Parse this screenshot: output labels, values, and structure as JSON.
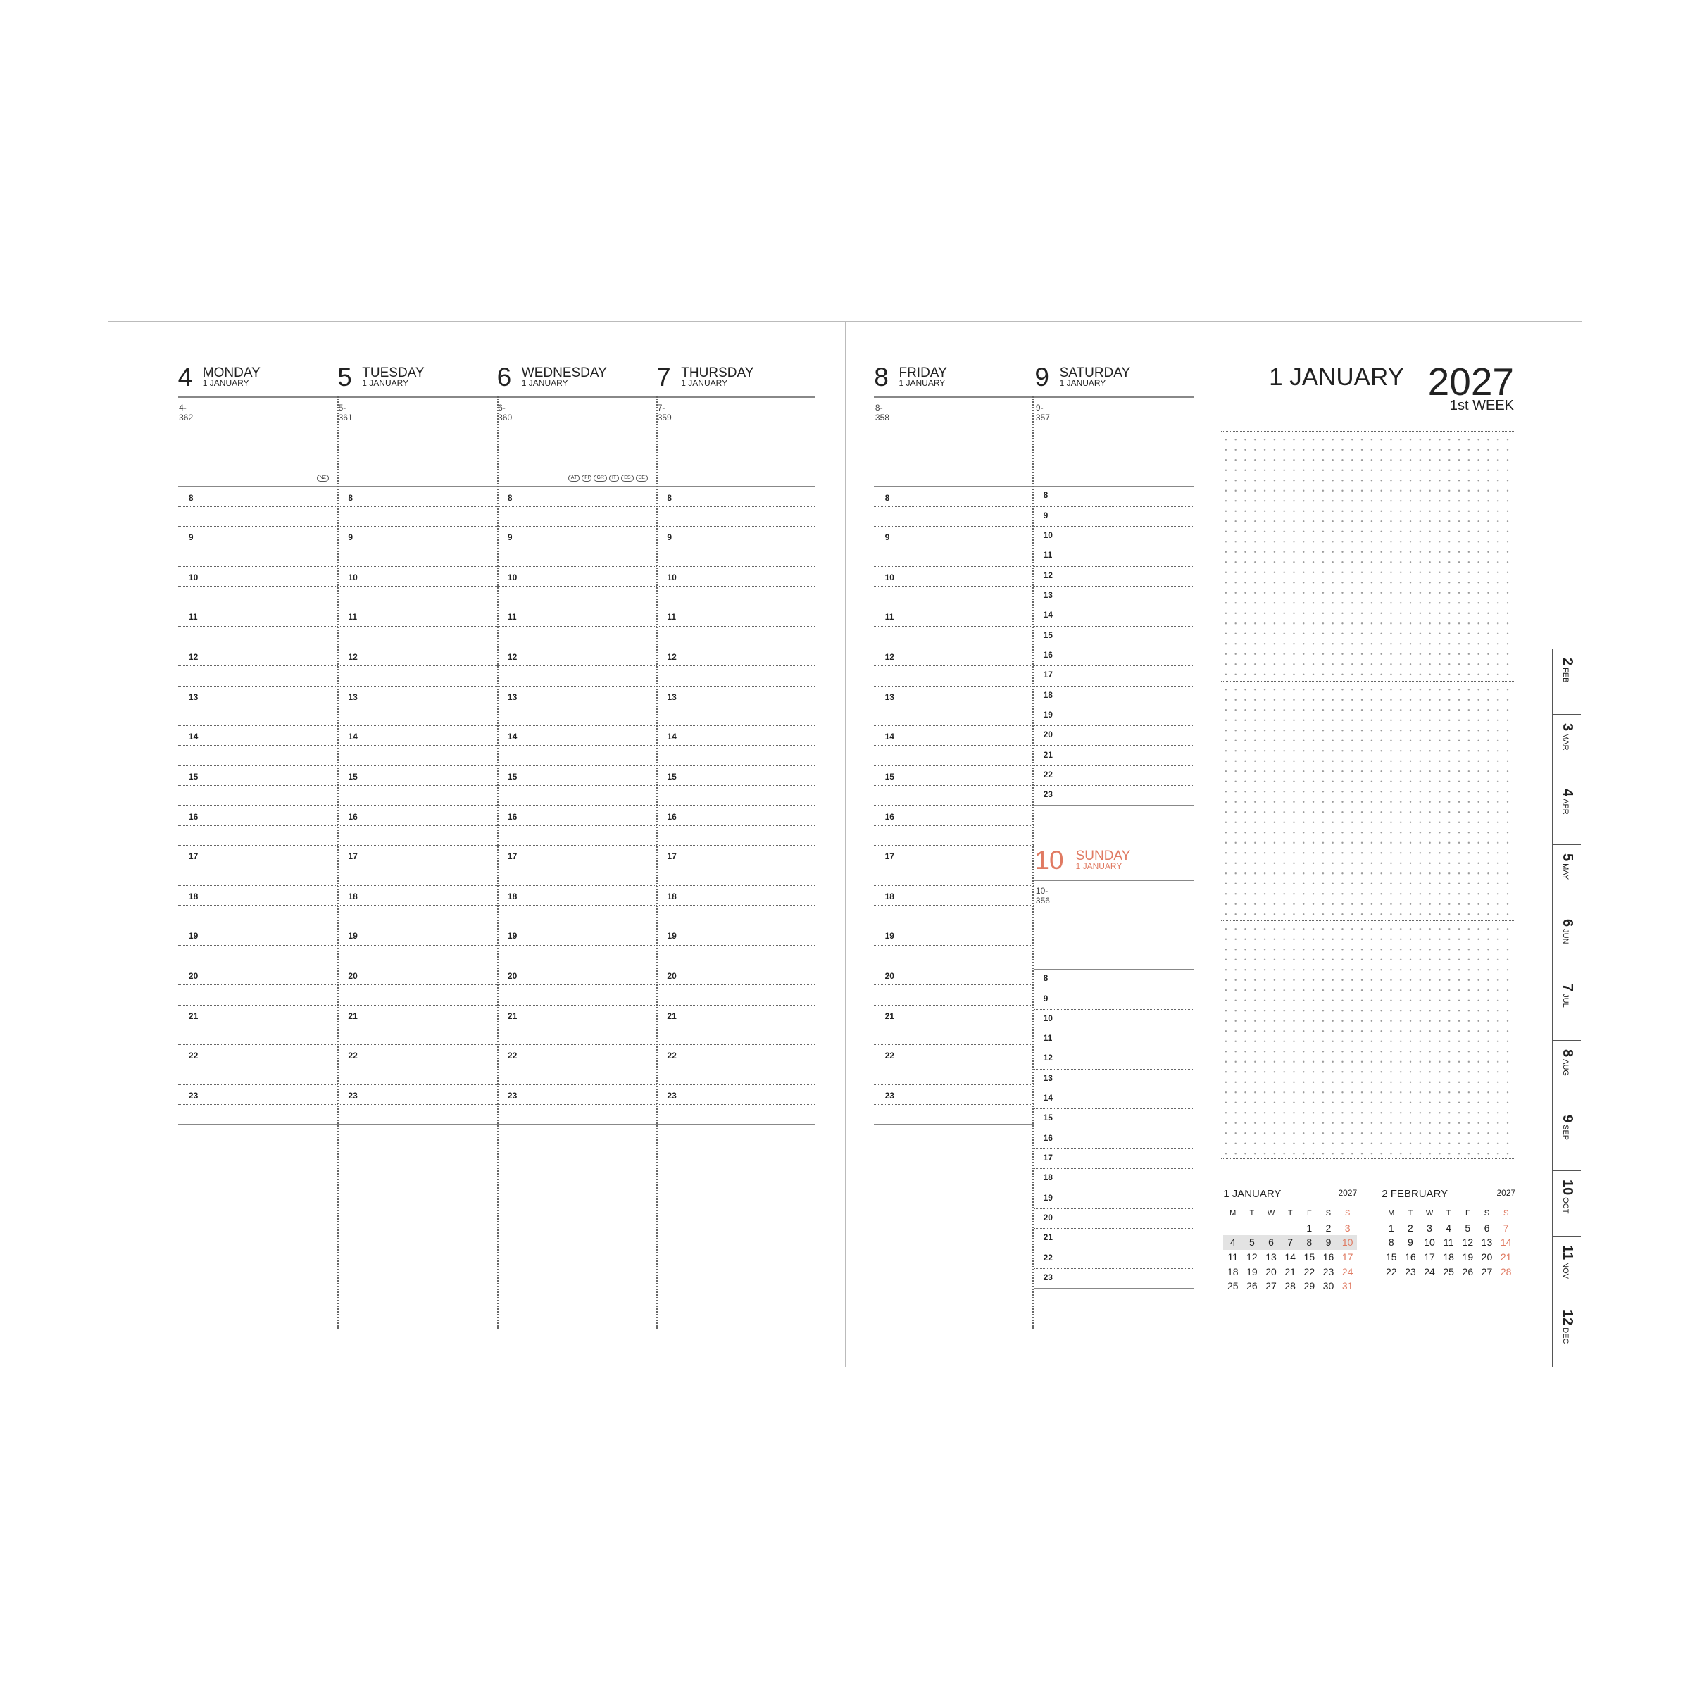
{
  "hours": [
    "8",
    "9",
    "10",
    "11",
    "12",
    "13",
    "14",
    "15",
    "16",
    "17",
    "18",
    "19",
    "20",
    "21",
    "22",
    "23"
  ],
  "days": [
    {
      "num": "4",
      "name": "MONDAY",
      "month": "1 JANUARY",
      "code": "4-362",
      "holidays": [
        "NZ"
      ]
    },
    {
      "num": "5",
      "name": "TUESDAY",
      "month": "1 JANUARY",
      "code": "5-361",
      "holidays": []
    },
    {
      "num": "6",
      "name": "WEDNESDAY",
      "month": "1 JANUARY",
      "code": "6-360",
      "holidays": [
        "AT",
        "FI",
        "GR",
        "IT",
        "ES",
        "SE"
      ]
    },
    {
      "num": "7",
      "name": "THURSDAY",
      "month": "1 JANUARY",
      "code": "7-359",
      "holidays": []
    },
    {
      "num": "8",
      "name": "FRIDAY",
      "month": "1 JANUARY",
      "code": "8-358",
      "holidays": []
    },
    {
      "num": "9",
      "name": "SATURDAY",
      "month": "1 JANUARY",
      "code": "9-357",
      "holidays": []
    },
    {
      "num": "10",
      "name": "SUNDAY",
      "month": "1 JANUARY",
      "code": "10-356",
      "holidays": []
    }
  ],
  "week_header": {
    "month": "1 JANUARY",
    "year": "2027",
    "week": "1st WEEK"
  },
  "sunday_color": "#e07a62",
  "mini_calendars": [
    {
      "title": "1 JANUARY",
      "year": "2027",
      "dow": [
        "M",
        "T",
        "W",
        "T",
        "F",
        "S",
        "S"
      ],
      "current_week": 1,
      "weeks": [
        [
          "",
          "",
          "",
          "",
          "1",
          "2",
          "3"
        ],
        [
          "4",
          "5",
          "6",
          "7",
          "8",
          "9",
          "10"
        ],
        [
          "11",
          "12",
          "13",
          "14",
          "15",
          "16",
          "17"
        ],
        [
          "18",
          "19",
          "20",
          "21",
          "22",
          "23",
          "24"
        ],
        [
          "25",
          "26",
          "27",
          "28",
          "29",
          "30",
          "31"
        ]
      ]
    },
    {
      "title": "2 FEBRUARY",
      "year": "2027",
      "dow": [
        "M",
        "T",
        "W",
        "T",
        "F",
        "S",
        "S"
      ],
      "current_week": -1,
      "weeks": [
        [
          "1",
          "2",
          "3",
          "4",
          "5",
          "6",
          "7"
        ],
        [
          "8",
          "9",
          "10",
          "11",
          "12",
          "13",
          "14"
        ],
        [
          "15",
          "16",
          "17",
          "18",
          "19",
          "20",
          "21"
        ],
        [
          "22",
          "23",
          "24",
          "25",
          "26",
          "27",
          "28"
        ]
      ]
    }
  ],
  "month_tabs": [
    {
      "num": "2",
      "abbr": "FEB"
    },
    {
      "num": "3",
      "abbr": "MAR"
    },
    {
      "num": "4",
      "abbr": "APR"
    },
    {
      "num": "5",
      "abbr": "MAY"
    },
    {
      "num": "6",
      "abbr": "JUN"
    },
    {
      "num": "7",
      "abbr": "JUL"
    },
    {
      "num": "8",
      "abbr": "AUG"
    },
    {
      "num": "9",
      "abbr": "SEP"
    },
    {
      "num": "10",
      "abbr": "OCT"
    },
    {
      "num": "11",
      "abbr": "NOV"
    },
    {
      "num": "12",
      "abbr": "DEC"
    }
  ]
}
